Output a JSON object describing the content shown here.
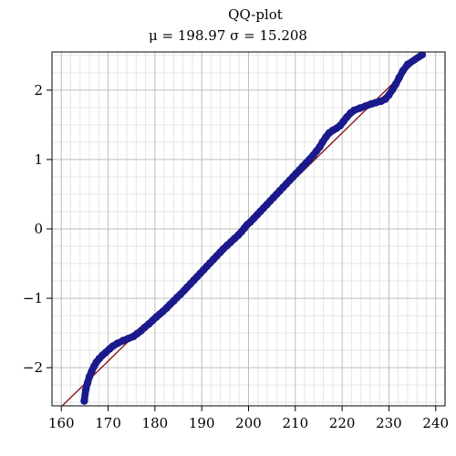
{
  "chart_data": {
    "type": "scatter",
    "title": "QQ-plot",
    "subtitle": "μ = 198.97  σ = 15.208",
    "xlim": [
      158,
      242
    ],
    "ylim": [
      -2.55,
      2.55
    ],
    "x_ticks": [
      160,
      170,
      180,
      190,
      200,
      210,
      220,
      230,
      240
    ],
    "y_ticks": [
      -2,
      -1,
      0,
      1,
      2
    ],
    "x_tick_labels": [
      "160",
      "170",
      "180",
      "190",
      "200",
      "210",
      "220",
      "230",
      "240"
    ],
    "y_tick_labels": [
      "−2",
      "−1",
      "0",
      "1",
      "2"
    ],
    "grid": true,
    "mu": 198.97,
    "sigma": 15.208,
    "reference_line": {
      "color": "#8b1a1a"
    },
    "marker_color": "#1a1a8c",
    "series": [
      {
        "points": [
          [
            164.9,
            -2.48
          ],
          [
            165.2,
            -2.32
          ],
          [
            165.6,
            -2.22
          ],
          [
            166.0,
            -2.13
          ],
          [
            166.5,
            -2.05
          ],
          [
            167.0,
            -1.98
          ],
          [
            167.5,
            -1.92
          ],
          [
            168.1,
            -1.87
          ],
          [
            168.8,
            -1.82
          ],
          [
            169.5,
            -1.78
          ],
          [
            170.3,
            -1.73
          ],
          [
            171.0,
            -1.69
          ],
          [
            172.0,
            -1.65
          ],
          [
            173.2,
            -1.61
          ],
          [
            174.3,
            -1.58
          ],
          [
            175.4,
            -1.55
          ],
          [
            176.2,
            -1.51
          ],
          [
            177.0,
            -1.47
          ],
          [
            177.8,
            -1.42
          ],
          [
            178.7,
            -1.37
          ],
          [
            179.5,
            -1.32
          ],
          [
            180.3,
            -1.27
          ],
          [
            181.0,
            -1.23
          ],
          [
            181.7,
            -1.19
          ],
          [
            182.5,
            -1.14
          ],
          [
            183.2,
            -1.09
          ],
          [
            184.0,
            -1.04
          ],
          [
            184.7,
            -0.99
          ],
          [
            185.5,
            -0.94
          ],
          [
            186.2,
            -0.89
          ],
          [
            186.9,
            -0.84
          ],
          [
            187.6,
            -0.79
          ],
          [
            188.3,
            -0.74
          ],
          [
            189.0,
            -0.69
          ],
          [
            189.7,
            -0.64
          ],
          [
            190.4,
            -0.59
          ],
          [
            191.1,
            -0.54
          ],
          [
            191.8,
            -0.49
          ],
          [
            192.5,
            -0.44
          ],
          [
            193.2,
            -0.39
          ],
          [
            193.9,
            -0.34
          ],
          [
            194.6,
            -0.29
          ],
          [
            195.4,
            -0.24
          ],
          [
            196.2,
            -0.19
          ],
          [
            197.0,
            -0.14
          ],
          [
            197.8,
            -0.09
          ],
          [
            198.5,
            -0.04
          ],
          [
            199.1,
            0.01
          ],
          [
            199.7,
            0.06
          ],
          [
            200.4,
            0.1
          ],
          [
            201.1,
            0.15
          ],
          [
            201.8,
            0.2
          ],
          [
            202.5,
            0.25
          ],
          [
            203.2,
            0.3
          ],
          [
            203.9,
            0.35
          ],
          [
            204.6,
            0.4
          ],
          [
            205.3,
            0.45
          ],
          [
            206.0,
            0.5
          ],
          [
            206.7,
            0.55
          ],
          [
            207.4,
            0.6
          ],
          [
            208.1,
            0.65
          ],
          [
            208.8,
            0.7
          ],
          [
            209.5,
            0.75
          ],
          [
            210.2,
            0.8
          ],
          [
            210.9,
            0.85
          ],
          [
            211.6,
            0.9
          ],
          [
            212.3,
            0.95
          ],
          [
            213.0,
            1.0
          ],
          [
            213.8,
            1.06
          ],
          [
            214.5,
            1.12
          ],
          [
            215.2,
            1.18
          ],
          [
            215.8,
            1.25
          ],
          [
            216.5,
            1.32
          ],
          [
            217.2,
            1.38
          ],
          [
            218.0,
            1.42
          ],
          [
            218.8,
            1.45
          ],
          [
            219.6,
            1.49
          ],
          [
            220.3,
            1.55
          ],
          [
            221.0,
            1.61
          ],
          [
            221.8,
            1.67
          ],
          [
            222.6,
            1.71
          ],
          [
            223.8,
            1.74
          ],
          [
            225.0,
            1.77
          ],
          [
            226.2,
            1.8
          ],
          [
            227.2,
            1.82
          ],
          [
            228.3,
            1.84
          ],
          [
            229.2,
            1.87
          ],
          [
            230.0,
            1.93
          ],
          [
            230.8,
            2.01
          ],
          [
            231.5,
            2.09
          ],
          [
            232.2,
            2.18
          ],
          [
            233.0,
            2.28
          ],
          [
            234.0,
            2.37
          ],
          [
            237.1,
            2.51
          ]
        ]
      }
    ]
  }
}
